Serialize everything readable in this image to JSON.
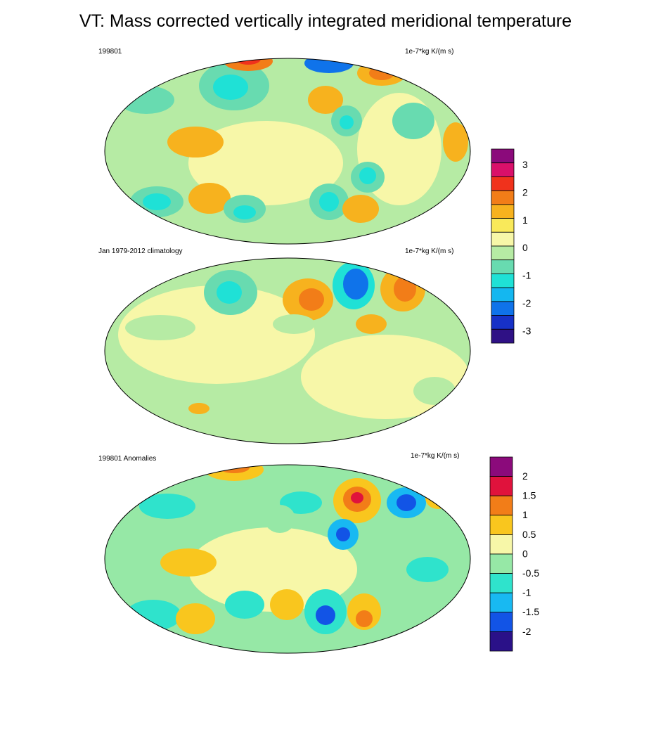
{
  "title": "VT: Mass corrected vertically integrated meridional temperature",
  "panels": [
    {
      "left_label": "199801",
      "right_label": "1e-7*kg K/(m s)"
    },
    {
      "left_label": "Jan 1979-2012 climatology",
      "right_label": "1e-7*kg K/(m s)"
    },
    {
      "left_label": "199801 Anomalies",
      "right_label": "1e-7*kg K/(m s)"
    }
  ],
  "colorbars": [
    {
      "labels": [
        "3",
        "2",
        "1",
        "0",
        "-1",
        "-2",
        "-3"
      ],
      "colors": [
        "#8b0a7b",
        "#d9106a",
        "#f0321c",
        "#f27d18",
        "#f7b21e",
        "#f9e95a",
        "#f7f7a8",
        "#b6eba4",
        "#68dbb0",
        "#1fe1d6",
        "#14b7f0",
        "#0f73ea",
        "#1731c7",
        "#2f1185"
      ]
    },
    {
      "labels": [
        "2",
        "1.5",
        "1",
        "0.5",
        "0",
        "-0.5",
        "-1",
        "-1.5",
        "-2"
      ],
      "colors": [
        "#8b0a7b",
        "#e0123c",
        "#f27d18",
        "#f9c61e",
        "#f7f7a8",
        "#96e8a6",
        "#2fe3cc",
        "#18b9f2",
        "#1254e6",
        "#2a1188"
      ]
    }
  ]
}
